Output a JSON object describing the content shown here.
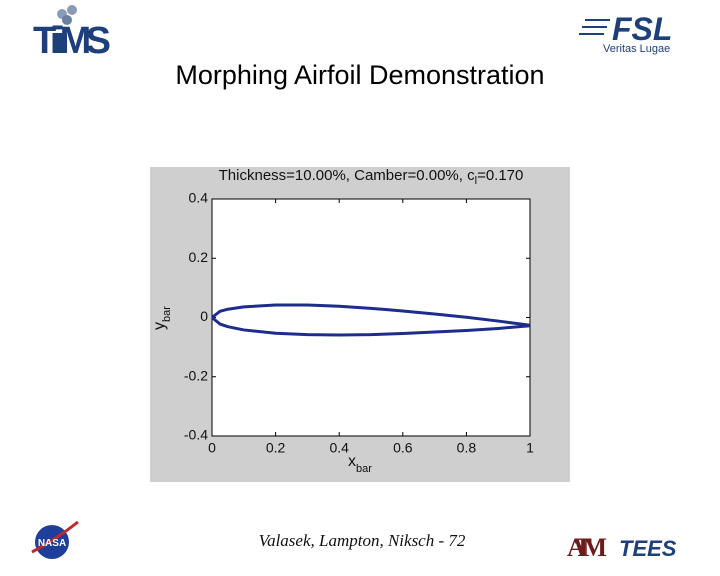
{
  "slide": {
    "title": "Morphing Airfoil Demonstration",
    "footer": "Valasek, Lampton, Niksch - 72",
    "logos": {
      "tiims": "TiiMS",
      "fsl": "FSL",
      "fsl_motto": "Veritas Lugae",
      "nasa": "NASA",
      "tamu": "ATM",
      "tees": "TEES"
    }
  },
  "chart_data": {
    "type": "line",
    "title": "Thickness=10.00%, Camber=0.00%, c",
    "title_subscript": "l",
    "title_end": "=0.170",
    "x_label": "x",
    "x_label_subscript": "bar",
    "y_label": "y",
    "y_label_subscript": "bar",
    "x": [
      0,
      0.025,
      0.05,
      0.1,
      0.2,
      0.3,
      0.4,
      0.5,
      0.6,
      0.7,
      0.8,
      0.9,
      1.0
    ],
    "series": [
      {
        "name": "upper",
        "color": "#1c2d8c",
        "values": [
          0,
          0.021,
          0.028,
          0.036,
          0.042,
          0.042,
          0.038,
          0.031,
          0.022,
          0.012,
          0.001,
          -0.012,
          -0.026
        ]
      },
      {
        "name": "lower",
        "color": "#1c2d8c",
        "values": [
          0,
          -0.022,
          -0.031,
          -0.042,
          -0.053,
          -0.058,
          -0.059,
          -0.058,
          -0.054,
          -0.049,
          -0.044,
          -0.037,
          -0.028
        ]
      }
    ],
    "xlim": [
      0,
      1
    ],
    "ylim": [
      -0.4,
      0.4
    ],
    "xticks": [
      0,
      0.2,
      0.4,
      0.6,
      0.8,
      1
    ],
    "yticks": [
      -0.4,
      -0.2,
      0,
      0.2,
      0.4
    ]
  }
}
